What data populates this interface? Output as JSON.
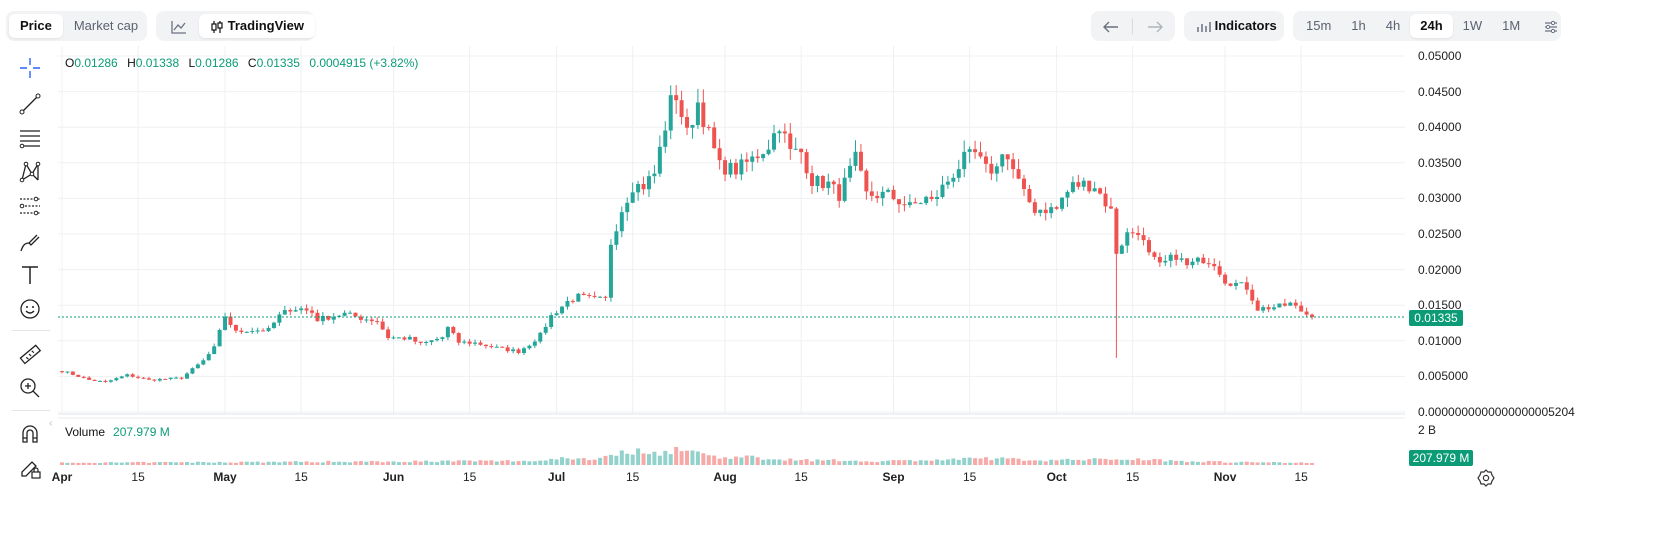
{
  "header": {
    "mode_tabs": [
      {
        "label": "Price",
        "active": true
      },
      {
        "label": "Market cap",
        "active": false
      }
    ],
    "chart_types": [
      {
        "icon": "line-chart-icon",
        "label": ""
      },
      {
        "icon": "candles-icon",
        "label": "TradingView"
      }
    ],
    "nav": {
      "back_icon": "arrow-left-icon",
      "forward_icon": "arrow-right-icon"
    },
    "indicators_label": "Indicators",
    "timeframes": [
      {
        "label": "15m",
        "active": false
      },
      {
        "label": "1h",
        "active": false
      },
      {
        "label": "4h",
        "active": false
      },
      {
        "label": "24h",
        "active": true
      },
      {
        "label": "1W",
        "active": false
      },
      {
        "label": "1M",
        "active": false
      }
    ],
    "settings_icon": "sliders-icon"
  },
  "toolbar": {
    "tools": [
      "crosshair-icon",
      "trend-line-icon",
      "horizontal-lines-icon",
      "pattern-icon",
      "fib-icon",
      "brush-icon",
      "text-icon",
      "emoji-icon",
      "ruler-icon",
      "zoom-in-icon",
      "magnet-icon",
      "lock-pencil-icon"
    ]
  },
  "legend": {
    "open_label": "O",
    "open": "0.01286",
    "high_label": "H",
    "high": "0.01338",
    "low_label": "L",
    "low": "0.01286",
    "close_label": "C",
    "close": "0.01335",
    "change": "0.0004915 (+3.82%)"
  },
  "volume": {
    "label": "Volume",
    "value": "207.979 M",
    "tag": "207.979 M",
    "scale_label": "2 B"
  },
  "price_tag": "0.01335",
  "colors": {
    "up": "#26a69a",
    "down": "#ef5350",
    "accent": "#0b9c77",
    "vol_up": "#92d2cc",
    "vol_down": "#f7a9a7"
  },
  "chart_data": {
    "type": "candlestick",
    "title": "",
    "y_tick_labels": [
      "0.05000",
      "0.04500",
      "0.04000",
      "0.03500",
      "0.03000",
      "0.02500",
      "0.02000",
      "0.01500",
      "0.01000",
      "0.005000",
      "0.0000000000000000005204"
    ],
    "y_ticks": [
      0.05,
      0.045,
      0.04,
      0.035,
      0.03,
      0.025,
      0.02,
      0.015,
      0.01,
      0.005,
      0
    ],
    "ylim": [
      0,
      0.05
    ],
    "x_labels": [
      {
        "text": "Apr",
        "day": 0,
        "month": true
      },
      {
        "text": "15",
        "day": 14,
        "month": false
      },
      {
        "text": "May",
        "day": 30,
        "month": true
      },
      {
        "text": "15",
        "day": 44,
        "month": false
      },
      {
        "text": "Jun",
        "day": 61,
        "month": true
      },
      {
        "text": "15",
        "day": 75,
        "month": false
      },
      {
        "text": "Jul",
        "day": 91,
        "month": true
      },
      {
        "text": "15",
        "day": 105,
        "month": false
      },
      {
        "text": "Aug",
        "day": 122,
        "month": true
      },
      {
        "text": "15",
        "day": 136,
        "month": false
      },
      {
        "text": "Sep",
        "day": 153,
        "month": true
      },
      {
        "text": "15",
        "day": 167,
        "month": false
      },
      {
        "text": "Oct",
        "day": 183,
        "month": true
      },
      {
        "text": "15",
        "day": 197,
        "month": false
      },
      {
        "text": "Nov",
        "day": 214,
        "month": true
      },
      {
        "text": "15",
        "day": 228,
        "month": false
      }
    ],
    "current_price": 0.01335,
    "anchors": [
      [
        0,
        0.0058
      ],
      [
        5,
        0.0045
      ],
      [
        8,
        0.0042
      ],
      [
        12,
        0.0052
      ],
      [
        16,
        0.0045
      ],
      [
        22,
        0.0048
      ],
      [
        26,
        0.0072
      ],
      [
        28,
        0.009
      ],
      [
        30,
        0.0135
      ],
      [
        32,
        0.0112
      ],
      [
        34,
        0.0115
      ],
      [
        38,
        0.0115
      ],
      [
        40,
        0.0135
      ],
      [
        42,
        0.0145
      ],
      [
        44,
        0.0145
      ],
      [
        46,
        0.014
      ],
      [
        47,
        0.013
      ],
      [
        52,
        0.0138
      ],
      [
        55,
        0.0132
      ],
      [
        58,
        0.0128
      ],
      [
        60,
        0.0105
      ],
      [
        64,
        0.0103
      ],
      [
        66,
        0.0095
      ],
      [
        70,
        0.0105
      ],
      [
        71,
        0.0118
      ],
      [
        73,
        0.0098
      ],
      [
        76,
        0.0097
      ],
      [
        80,
        0.009
      ],
      [
        84,
        0.0085
      ],
      [
        86,
        0.0095
      ],
      [
        88,
        0.0108
      ],
      [
        90,
        0.0135
      ],
      [
        93,
        0.0155
      ],
      [
        95,
        0.0162
      ],
      [
        98,
        0.0158
      ],
      [
        100,
        0.0158
      ],
      [
        101,
        0.0238
      ],
      [
        103,
        0.0285
      ],
      [
        105,
        0.0318
      ],
      [
        107,
        0.0318
      ],
      [
        109,
        0.0335
      ],
      [
        112,
        0.0435
      ],
      [
        113,
        0.0445
      ],
      [
        115,
        0.039
      ],
      [
        117,
        0.0435
      ],
      [
        119,
        0.039
      ],
      [
        121,
        0.0345
      ],
      [
        124,
        0.034
      ],
      [
        127,
        0.0355
      ],
      [
        130,
        0.0375
      ],
      [
        132,
        0.0405
      ],
      [
        134,
        0.0365
      ],
      [
        136,
        0.0365
      ],
      [
        138,
        0.0325
      ],
      [
        141,
        0.032
      ],
      [
        143,
        0.0305
      ],
      [
        146,
        0.0355
      ],
      [
        148,
        0.0305
      ],
      [
        152,
        0.0305
      ],
      [
        156,
        0.0288
      ],
      [
        159,
        0.03
      ],
      [
        160,
        0.0295
      ],
      [
        163,
        0.0325
      ],
      [
        166,
        0.0355
      ],
      [
        168,
        0.0362
      ],
      [
        170,
        0.034
      ],
      [
        172,
        0.0342
      ],
      [
        173,
        0.037
      ],
      [
        175,
        0.034
      ],
      [
        177,
        0.0305
      ],
      [
        179,
        0.0285
      ],
      [
        183,
        0.0285
      ],
      [
        184,
        0.03
      ],
      [
        186,
        0.0318
      ],
      [
        188,
        0.032
      ],
      [
        190,
        0.0318
      ],
      [
        193,
        0.0282
      ],
      [
        194,
        0.0225
      ],
      [
        196,
        0.025
      ],
      [
        198,
        0.0255
      ],
      [
        200,
        0.022
      ],
      [
        202,
        0.0205
      ],
      [
        205,
        0.022
      ],
      [
        207,
        0.0205
      ],
      [
        210,
        0.0215
      ],
      [
        212,
        0.021
      ],
      [
        214,
        0.0185
      ],
      [
        216,
        0.018
      ],
      [
        218,
        0.0175
      ],
      [
        220,
        0.0145
      ],
      [
        224,
        0.0148
      ],
      [
        226,
        0.0152
      ],
      [
        228,
        0.0142
      ],
      [
        230,
        0.0133
      ]
    ],
    "special_wicks": [
      {
        "day": 194,
        "low": 0.0076
      }
    ],
    "volume_profile": [
      [
        0,
        0.05
      ],
      [
        88,
        0.1
      ],
      [
        92,
        0.17
      ],
      [
        98,
        0.14
      ],
      [
        102,
        0.27
      ],
      [
        106,
        0.32
      ],
      [
        110,
        0.29
      ],
      [
        114,
        0.38
      ],
      [
        117,
        0.28
      ],
      [
        121,
        0.19
      ],
      [
        126,
        0.18
      ],
      [
        136,
        0.12
      ],
      [
        150,
        0.09
      ],
      [
        165,
        0.13
      ],
      [
        170,
        0.16
      ],
      [
        180,
        0.11
      ],
      [
        190,
        0.13
      ],
      [
        196,
        0.15
      ],
      [
        205,
        0.1
      ],
      [
        215,
        0.07
      ],
      [
        230,
        0.05
      ]
    ],
    "volume_max": 2000000000
  }
}
